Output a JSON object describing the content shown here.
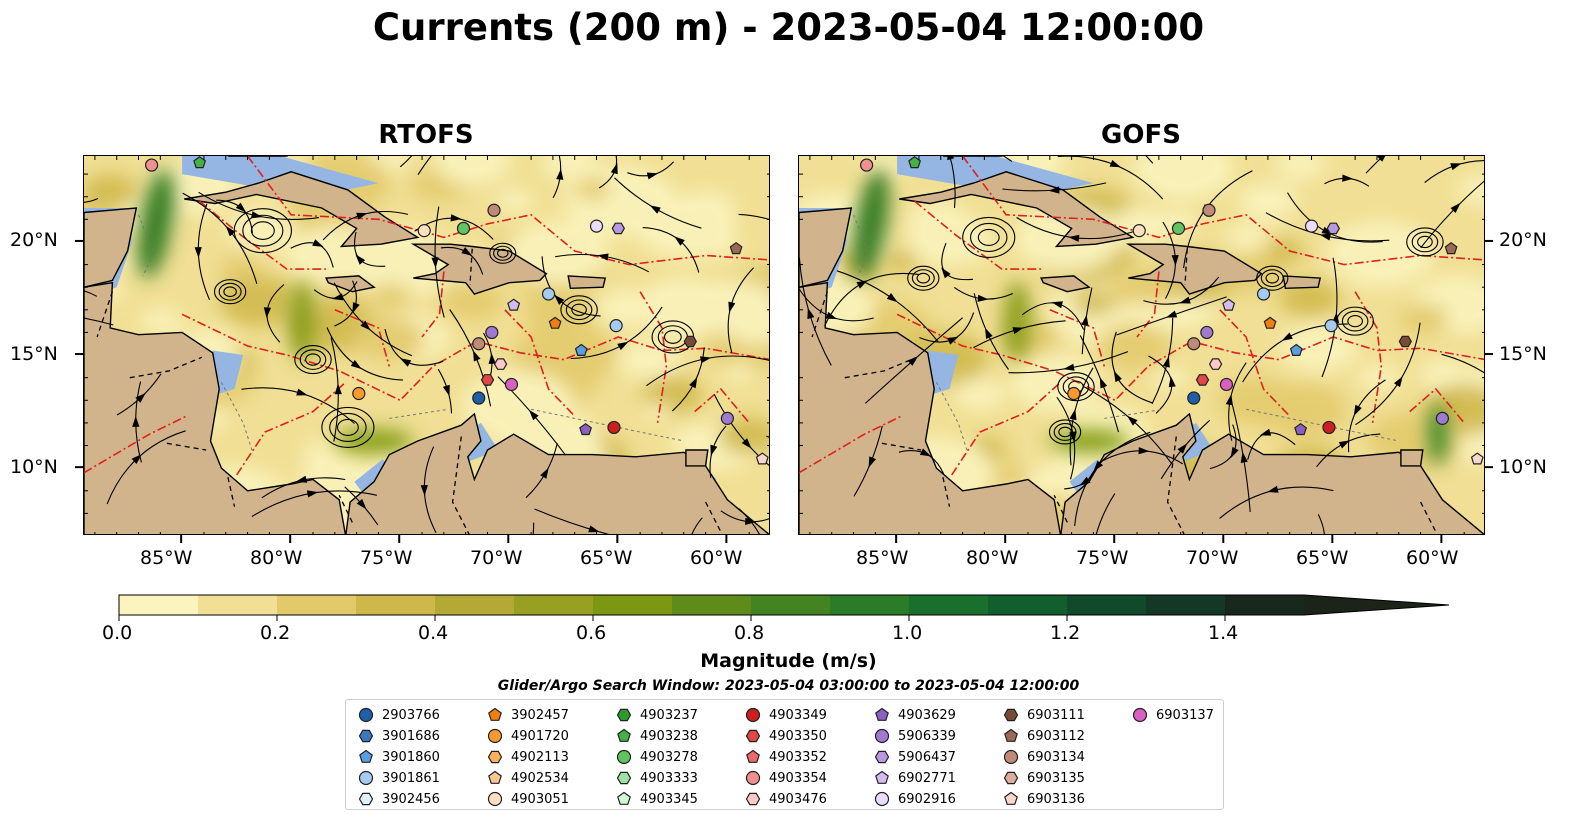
{
  "title": "Currents (200 m) - 2023-05-04 12:00:00",
  "panels": [
    {
      "title": "RTOFS",
      "id": "rtofs"
    },
    {
      "title": "GOFS",
      "id": "gofs"
    }
  ],
  "lat_labels": [
    "20°N",
    "15°N",
    "10°N"
  ],
  "lon_labels": [
    "85°W",
    "80°W",
    "75°W",
    "70°W",
    "65°W",
    "60°W"
  ],
  "map_extent": {
    "lon_min": -89.5,
    "lon_max": -58,
    "lat_min": 7,
    "lat_max": 23.8
  },
  "colorbar": {
    "label": "Magnitude (m/s)",
    "ticks": [
      "0.0",
      "0.2",
      "0.4",
      "0.6",
      "0.8",
      "1.0",
      "1.2",
      "1.4"
    ],
    "colors": [
      "#fbf4bf",
      "#f0df94",
      "#e2c96a",
      "#cfb84a",
      "#b4a934",
      "#97a020",
      "#7c9712",
      "#5f8b1a",
      "#448322",
      "#2b7b28",
      "#19702c",
      "#125e2c",
      "#114a2a",
      "#143826",
      "#19281c",
      "#1c2318"
    ]
  },
  "search_window": "Glider/Argo Search Window: 2023-05-04 03:00:00 to 2023-05-04 12:00:00",
  "legend": [
    {
      "id": "2903766",
      "marker": "circle",
      "color": "#1f5fa8"
    },
    {
      "id": "3901686",
      "marker": "hexagon",
      "color": "#3a78c0"
    },
    {
      "id": "3901860",
      "marker": "pentagon",
      "color": "#5a9ee0"
    },
    {
      "id": "3901861",
      "marker": "circle",
      "color": "#a6cbf0"
    },
    {
      "id": "3902456",
      "marker": "hexagon",
      "color": "#dff0ff"
    },
    {
      "id": "3902457",
      "marker": "pentagon",
      "color": "#f07f12"
    },
    {
      "id": "4901720",
      "marker": "circle",
      "color": "#f89a30"
    },
    {
      "id": "4902113",
      "marker": "hexagon",
      "color": "#fbb060"
    },
    {
      "id": "4902534",
      "marker": "pentagon",
      "color": "#fdc890"
    },
    {
      "id": "4903051",
      "marker": "circle",
      "color": "#fde0c0"
    },
    {
      "id": "4903237",
      "marker": "hexagon",
      "color": "#2e9a2e"
    },
    {
      "id": "4903238",
      "marker": "pentagon",
      "color": "#45b045"
    },
    {
      "id": "4903278",
      "marker": "circle",
      "color": "#60c460"
    },
    {
      "id": "4903333",
      "marker": "hexagon",
      "color": "#a0e0a0"
    },
    {
      "id": "4903345",
      "marker": "pentagon",
      "color": "#d4f8d4"
    },
    {
      "id": "4903349",
      "marker": "circle",
      "color": "#cc2020"
    },
    {
      "id": "4903350",
      "marker": "hexagon",
      "color": "#e04848"
    },
    {
      "id": "4903352",
      "marker": "pentagon",
      "color": "#ec6a6a"
    },
    {
      "id": "4903354",
      "marker": "circle",
      "color": "#f29090"
    },
    {
      "id": "4903476",
      "marker": "hexagon",
      "color": "#fcc8c8"
    },
    {
      "id": "4903629",
      "marker": "pentagon",
      "color": "#8a60c0"
    },
    {
      "id": "5906339",
      "marker": "circle",
      "color": "#a07ad0"
    },
    {
      "id": "5906437",
      "marker": "hexagon",
      "color": "#b898e0"
    },
    {
      "id": "6902771",
      "marker": "pentagon",
      "color": "#d4bcf0"
    },
    {
      "id": "6902916",
      "marker": "circle",
      "color": "#eadcff"
    },
    {
      "id": "6903111",
      "marker": "hexagon",
      "color": "#7a4a38"
    },
    {
      "id": "6903112",
      "marker": "pentagon",
      "color": "#9a6a56"
    },
    {
      "id": "6903134",
      "marker": "circle",
      "color": "#c08a78"
    },
    {
      "id": "6903135",
      "marker": "hexagon",
      "color": "#dcac9c"
    },
    {
      "id": "6903136",
      "marker": "pentagon",
      "color": "#f8d8cc"
    },
    {
      "id": "6903137",
      "marker": "circle",
      "color": "#d860c0"
    }
  ],
  "floats": {
    "rtofs": [
      {
        "id": "4903354",
        "lon": -86.4,
        "lat": 23.4
      },
      {
        "id": "4903238",
        "lon": -84.2,
        "lat": 23.5
      },
      {
        "id": "4903051",
        "lon": -73.9,
        "lat": 20.5
      },
      {
        "id": "4903278",
        "lon": -72.1,
        "lat": 20.6
      },
      {
        "id": "6903134",
        "lon": -70.7,
        "lat": 21.4
      },
      {
        "id": "6902916",
        "lon": -66.0,
        "lat": 20.7
      },
      {
        "id": "5906437",
        "lon": -65.0,
        "lat": 20.6
      },
      {
        "id": "6903112",
        "lon": -59.6,
        "lat": 19.7
      },
      {
        "id": "3901861",
        "lon": -68.2,
        "lat": 17.7
      },
      {
        "id": "6902771",
        "lon": -69.8,
        "lat": 17.2
      },
      {
        "id": "3902457",
        "lon": -67.9,
        "lat": 16.4
      },
      {
        "id": "3901861",
        "lon": -65.1,
        "lat": 16.3
      },
      {
        "id": "5906339",
        "lon": -70.8,
        "lat": 16.0
      },
      {
        "id": "6903134",
        "lon": -71.4,
        "lat": 15.5
      },
      {
        "id": "3901860",
        "lon": -66.7,
        "lat": 15.2
      },
      {
        "id": "6903111",
        "lon": -61.7,
        "lat": 15.6
      },
      {
        "id": "4903476",
        "lon": -70.4,
        "lat": 14.6
      },
      {
        "id": "4903350",
        "lon": -71.0,
        "lat": 13.9
      },
      {
        "id": "6903137",
        "lon": -69.9,
        "lat": 13.7
      },
      {
        "id": "4901720",
        "lon": -76.9,
        "lat": 13.3
      },
      {
        "id": "2903766",
        "lon": -71.4,
        "lat": 13.1
      },
      {
        "id": "4903629",
        "lon": -66.5,
        "lat": 11.7
      },
      {
        "id": "4903349",
        "lon": -65.2,
        "lat": 11.8
      },
      {
        "id": "5906339",
        "lon": -60.0,
        "lat": 12.2
      },
      {
        "id": "6903136",
        "lon": -58.4,
        "lat": 10.4
      }
    ],
    "gofs": [
      {
        "id": "4903354",
        "lon": -86.4,
        "lat": 23.4
      },
      {
        "id": "4903238",
        "lon": -84.2,
        "lat": 23.5
      },
      {
        "id": "4903051",
        "lon": -73.9,
        "lat": 20.5
      },
      {
        "id": "4903278",
        "lon": -72.1,
        "lat": 20.6
      },
      {
        "id": "6903134",
        "lon": -70.7,
        "lat": 21.4
      },
      {
        "id": "6902916",
        "lon": -66.0,
        "lat": 20.7
      },
      {
        "id": "5906437",
        "lon": -65.0,
        "lat": 20.6
      },
      {
        "id": "6903112",
        "lon": -59.6,
        "lat": 19.7
      },
      {
        "id": "3901861",
        "lon": -68.2,
        "lat": 17.7
      },
      {
        "id": "6902771",
        "lon": -69.8,
        "lat": 17.2
      },
      {
        "id": "3902457",
        "lon": -67.9,
        "lat": 16.4
      },
      {
        "id": "3901861",
        "lon": -65.1,
        "lat": 16.3
      },
      {
        "id": "5906339",
        "lon": -70.8,
        "lat": 16.0
      },
      {
        "id": "6903134",
        "lon": -71.4,
        "lat": 15.5
      },
      {
        "id": "3901860",
        "lon": -66.7,
        "lat": 15.2
      },
      {
        "id": "6903111",
        "lon": -61.7,
        "lat": 15.6
      },
      {
        "id": "4903476",
        "lon": -70.4,
        "lat": 14.6
      },
      {
        "id": "4903350",
        "lon": -71.0,
        "lat": 13.9
      },
      {
        "id": "6903137",
        "lon": -69.9,
        "lat": 13.7
      },
      {
        "id": "4901720",
        "lon": -76.9,
        "lat": 13.3
      },
      {
        "id": "2903766",
        "lon": -71.4,
        "lat": 13.1
      },
      {
        "id": "4903629",
        "lon": -66.5,
        "lat": 11.7
      },
      {
        "id": "4903349",
        "lon": -65.2,
        "lat": 11.8
      },
      {
        "id": "5906339",
        "lon": -60.0,
        "lat": 12.2
      },
      {
        "id": "6903136",
        "lon": -58.4,
        "lat": 10.4
      }
    ]
  },
  "land_color": "#d2b48c",
  "shelf_color": "#95b6e3",
  "eez_color": "#e0201e"
}
